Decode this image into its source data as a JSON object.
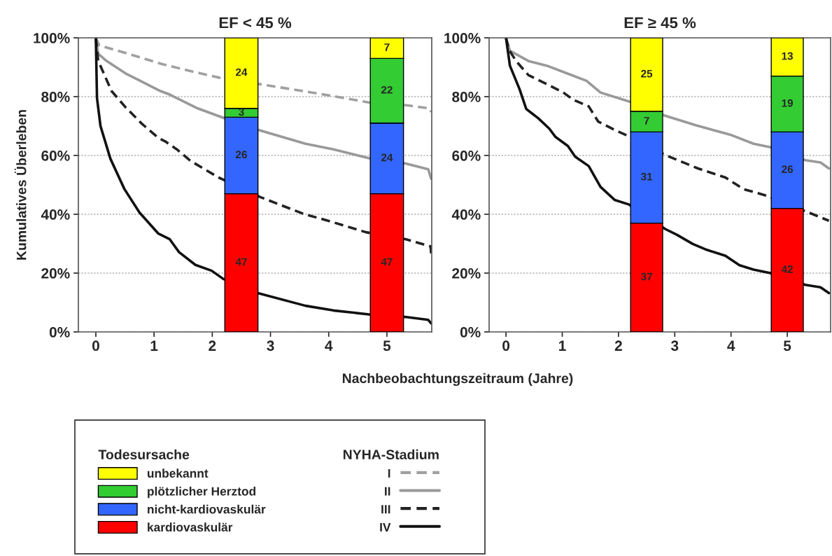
{
  "chart_data": [
    {
      "type": "bar",
      "title": "EF < 45 %",
      "xlabel": "Nachbeobachtungszeitraum (Jahre)",
      "ylabel": "Kumulatives Überleben",
      "legend_title": "NYHA-Stadium",
      "legend": "bottom",
      "grid": "y",
      "stacked": true,
      "xlim": [
        -0.3,
        5.77
      ],
      "xticks": [
        0,
        1,
        2,
        3,
        4,
        5
      ],
      "ylim": [
        0,
        100
      ],
      "yticks": [
        {
          "value": 0,
          "label": "0%"
        },
        {
          "value": 20,
          "label": "20%"
        },
        {
          "value": 40,
          "label": "40%"
        },
        {
          "value": 60,
          "label": "60%"
        },
        {
          "value": 80,
          "label": "80%"
        },
        {
          "value": 100,
          "label": "100%"
        }
      ],
      "series": [
        {
          "name": "I",
          "type": "line",
          "line_style": "dashed",
          "color": "#a0a0a0",
          "x": [
            0,
            0.06,
            0.55,
            1.15,
            1.71,
            2.15,
            2.8,
            3.56,
            4.16,
            4.72,
            5.33,
            5.73,
            5.76
          ],
          "values": [
            100,
            97.4,
            94.6,
            91,
            88.3,
            86.3,
            84.3,
            81.9,
            79.9,
            77.9,
            77.1,
            76,
            74.8
          ]
        },
        {
          "name": "II",
          "type": "line",
          "line_style": "solid",
          "color": "#999999",
          "x": [
            0,
            0.04,
            0.18,
            0.51,
            0.75,
            1.11,
            1.27,
            1.75,
            2.19,
            2.77,
            3.6,
            4.08,
            4.72,
            5.31,
            5.71,
            5.76
          ],
          "values": [
            100,
            94.6,
            92.2,
            87.9,
            85.5,
            81.9,
            80.7,
            76,
            72.8,
            68.8,
            64,
            62.1,
            58.9,
            57.3,
            55.3,
            52.1
          ]
        },
        {
          "name": "III",
          "type": "line",
          "line_style": "dashed",
          "color": "#222222",
          "x": [
            0,
            0.04,
            0.27,
            0.51,
            0.79,
            1.07,
            1.19,
            1.39,
            1.63,
            2.11,
            2.83,
            3.56,
            4.04,
            4.64,
            5.33,
            5.75,
            5.76
          ],
          "values": [
            100,
            92.2,
            81.9,
            76.4,
            70.8,
            66,
            64.8,
            62.1,
            58.1,
            52.5,
            45.8,
            40.2,
            37.5,
            33.9,
            31.5,
            29.1,
            26.7
          ]
        },
        {
          "name": "IV",
          "type": "line",
          "line_style": "solid",
          "color": "#111111",
          "x": [
            0,
            0.02,
            0.08,
            0.25,
            0.49,
            0.75,
            1.07,
            1.27,
            1.43,
            1.71,
            1.99,
            2.19,
            2.77,
            3.6,
            4.08,
            4.72,
            5.31,
            5.71,
            5.76
          ],
          "values": [
            100,
            79.5,
            70,
            58.9,
            48.6,
            40.6,
            33.5,
            31.5,
            27.1,
            22.8,
            20.8,
            18,
            13.3,
            8.9,
            7.3,
            5.9,
            5.1,
            4.1,
            2.9
          ]
        },
        {
          "color": "#ff0000",
          "x": [
            2.5,
            5
          ],
          "values": [
            47,
            47
          ],
          "value_labels": [
            "47",
            "47"
          ]
        },
        {
          "color": "#3366ff",
          "x": [
            2.5,
            5
          ],
          "values": [
            26,
            24
          ],
          "value_labels": [
            "26",
            "24"
          ]
        },
        {
          "color": "#33cc33",
          "x": [
            2.5,
            5
          ],
          "values": [
            3,
            22
          ],
          "value_labels": [
            "3",
            "22"
          ]
        },
        {
          "color": "#ffff00",
          "x": [
            2.5,
            5
          ],
          "values": [
            24,
            7
          ],
          "value_labels": [
            "24",
            "7"
          ]
        }
      ]
    },
    {
      "type": "bar",
      "title": "EF ≥ 45 %",
      "legend_title": "Todesursache",
      "legend": "bottom",
      "grid": "y",
      "stacked": true,
      "xlim": [
        -0.3,
        5.77
      ],
      "xticks": [
        0,
        1,
        2,
        3,
        4,
        5
      ],
      "ylim": [
        0,
        100
      ],
      "yticks": [
        {
          "value": 0,
          "label": "0%"
        },
        {
          "value": 20,
          "label": "20%"
        },
        {
          "value": 40,
          "label": "40%"
        },
        {
          "value": 60,
          "label": "60%"
        },
        {
          "value": 80,
          "label": "80%"
        },
        {
          "value": 100,
          "label": "100%"
        }
      ],
      "series": [
        {
          "type": "line",
          "line_style": "solid",
          "color": "#999999",
          "x": [
            0,
            0.07,
            0.4,
            0.73,
            1.06,
            1.43,
            1.68,
            2.21,
            2.83,
            3.37,
            3.98,
            4.4,
            4.7,
            5.32,
            5.59,
            5.74
          ],
          "values": [
            100,
            95.6,
            92.1,
            90.5,
            88.1,
            85.4,
            81.4,
            78.2,
            73.5,
            70.3,
            67.1,
            64,
            62.8,
            58.4,
            57.6,
            55.6
          ]
        },
        {
          "type": "line",
          "line_style": "dashed",
          "color": "#222222",
          "x": [
            0,
            0.05,
            0.18,
            0.4,
            0.73,
            1.02,
            1.19,
            1.47,
            1.64,
            1.93,
            2.21,
            2.85,
            3.41,
            3.9,
            4.23,
            4.6,
            5.38,
            5.74
          ],
          "values": [
            100,
            96,
            92.1,
            87.3,
            84.2,
            81.4,
            79,
            76.7,
            71.5,
            68.7,
            66.3,
            60,
            55.6,
            52.5,
            48.5,
            46.5,
            40.6,
            37.8
          ]
        },
        {
          "type": "line",
          "line_style": "solid",
          "color": "#111111",
          "x": [
            0,
            0.07,
            0.24,
            0.36,
            0.57,
            0.77,
            0.88,
            1.1,
            1.23,
            1.47,
            1.68,
            1.93,
            2.19,
            2.83,
            3.04,
            3.32,
            3.57,
            3.9,
            4.15,
            4.4,
            4.7,
            5.32,
            5.59,
            5.74
          ],
          "values": [
            100,
            90.5,
            82.6,
            75.8,
            72.7,
            69.1,
            66.3,
            63.2,
            59.6,
            56.4,
            49.3,
            44.9,
            43.3,
            35,
            33,
            29.9,
            27.9,
            25.9,
            22.7,
            21.2,
            20,
            16,
            15.2,
            13.2
          ]
        },
        {
          "name": "kardiovaskulär",
          "color": "#ff0000",
          "x": [
            2.5,
            5
          ],
          "values": [
            37,
            42
          ],
          "value_labels": [
            "37",
            "42"
          ]
        },
        {
          "name": "nicht-kardiovaskulär",
          "color": "#3366ff",
          "x": [
            2.5,
            5
          ],
          "values": [
            31,
            26
          ],
          "value_labels": [
            "31",
            "26"
          ]
        },
        {
          "name": "plötzlicher Herztod",
          "color": "#33cc33",
          "x": [
            2.5,
            5
          ],
          "values": [
            7,
            19
          ],
          "value_labels": [
            "7",
            "19"
          ]
        },
        {
          "name": "unbekannt",
          "color": "#ffff00",
          "x": [
            2.5,
            5
          ],
          "values": [
            25,
            13
          ],
          "value_labels": [
            "25",
            "13"
          ]
        }
      ]
    }
  ]
}
